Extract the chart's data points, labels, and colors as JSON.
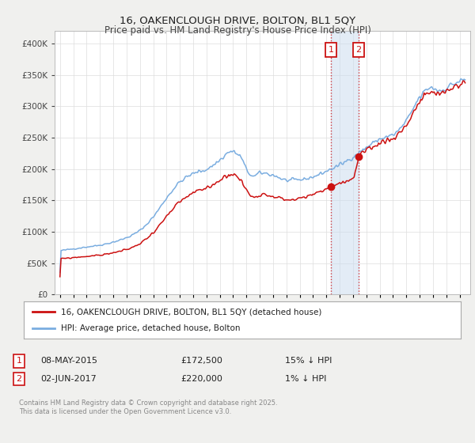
{
  "title": "16, OAKENCLOUGH DRIVE, BOLTON, BL1 5QY",
  "subtitle": "Price paid vs. HM Land Registry's House Price Index (HPI)",
  "legend_entry1": "16, OAKENCLOUGH DRIVE, BOLTON, BL1 5QY (detached house)",
  "legend_entry2": "HPI: Average price, detached house, Bolton",
  "transaction1_date_label": "08-MAY-2015",
  "transaction1_price_label": "£172,500",
  "transaction1_hpi_label": "15% ↓ HPI",
  "transaction1_x": 2015.36,
  "transaction1_y": 172500,
  "transaction2_date_label": "02-JUN-2017",
  "transaction2_price_label": "£220,000",
  "transaction2_hpi_label": "1% ↓ HPI",
  "transaction2_x": 2017.42,
  "transaction2_y": 220000,
  "hpi_color": "#7aade0",
  "price_color": "#cc1111",
  "shade_color": "#ccddf0",
  "vline_color": "#cc1111",
  "footer_text": "Contains HM Land Registry data © Crown copyright and database right 2025.\nThis data is licensed under the Open Government Licence v3.0.",
  "ylim": [
    0,
    420000
  ],
  "xlim_left": 1994.6,
  "xlim_right": 2025.8,
  "yticks": [
    0,
    50000,
    100000,
    150000,
    200000,
    250000,
    300000,
    350000,
    400000
  ],
  "xticks": [
    1995,
    1996,
    1997,
    1998,
    1999,
    2000,
    2001,
    2002,
    2003,
    2004,
    2005,
    2006,
    2007,
    2008,
    2009,
    2010,
    2011,
    2012,
    2013,
    2014,
    2015,
    2016,
    2017,
    2018,
    2019,
    2020,
    2021,
    2022,
    2023,
    2024,
    2025
  ],
  "bg_color": "#f0f0ee",
  "plot_bg": "#ffffff",
  "grid_color": "#dddddd",
  "title_fontsize": 9.5,
  "subtitle_fontsize": 8.5
}
